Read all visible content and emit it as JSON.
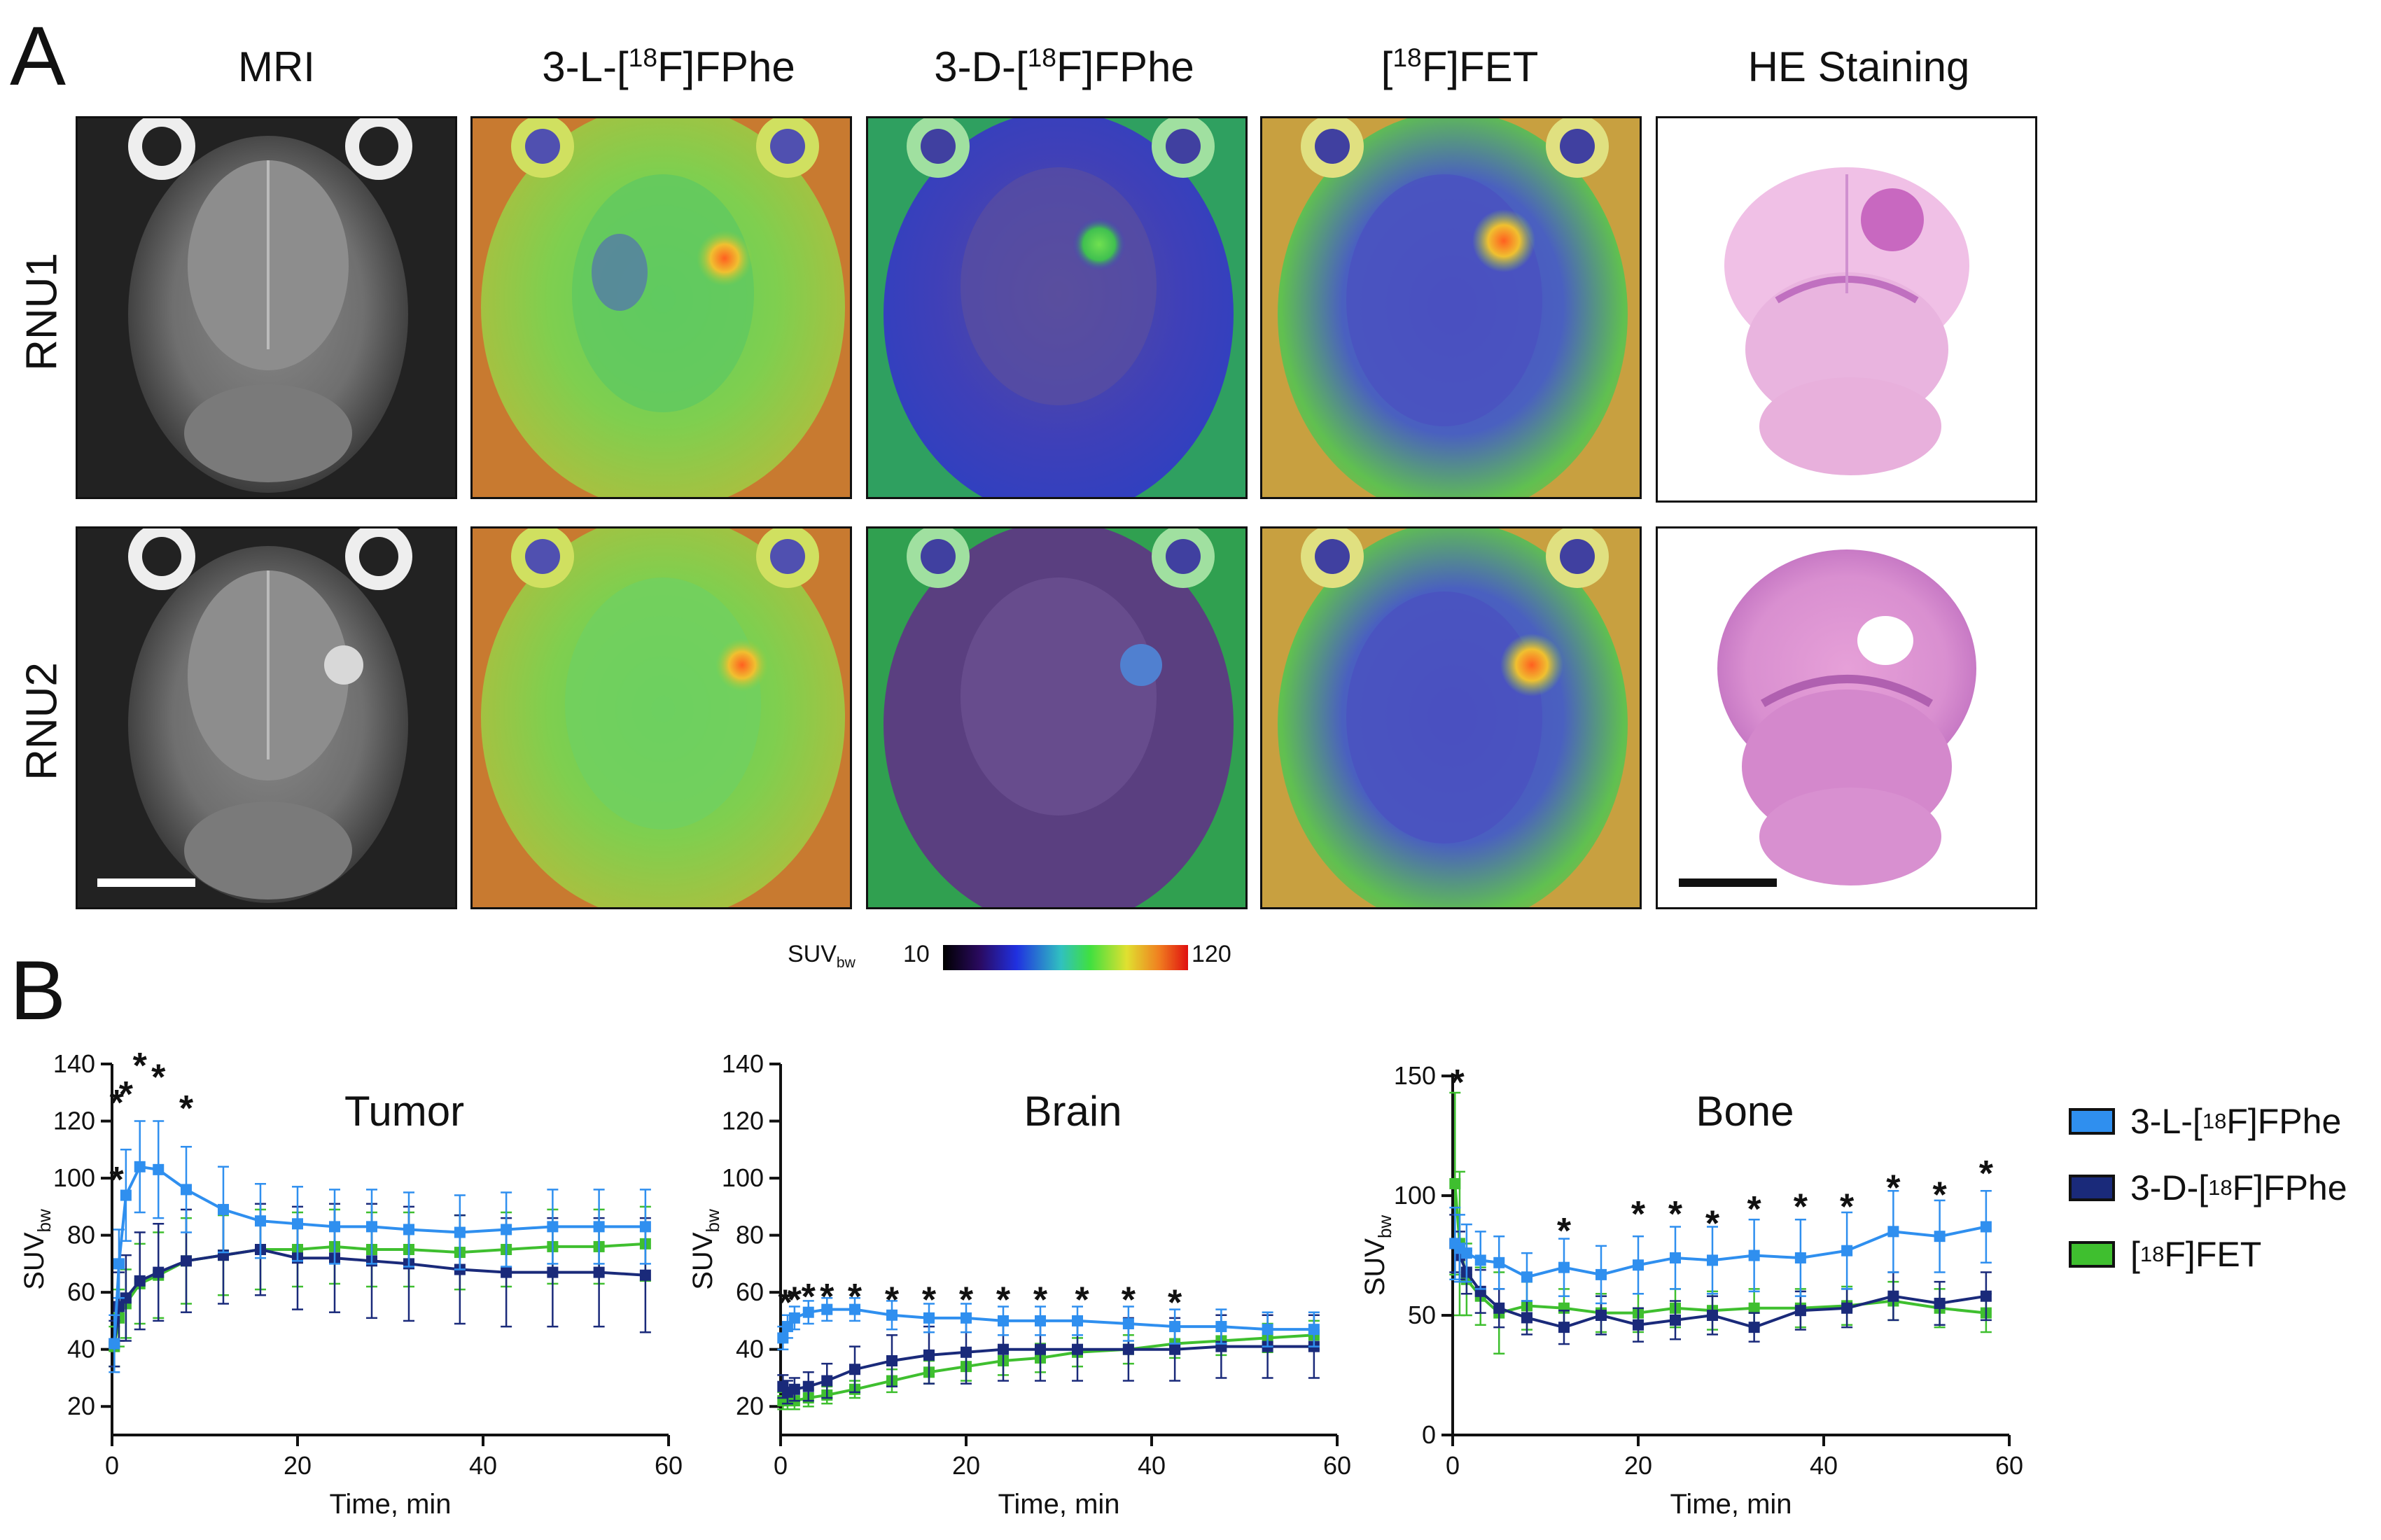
{
  "panelA": {
    "letter": "A",
    "columns": [
      {
        "title": "MRI"
      },
      {
        "pre": "3-",
        "sc": "L",
        "mid": "-[",
        "sup": "18",
        "post": "F]FPhe"
      },
      {
        "pre": "3-",
        "sc": "D",
        "mid": "-[",
        "sup": "18",
        "post": "F]FPhe"
      },
      {
        "pre": "",
        "sc": "",
        "mid": "[",
        "sup": "18",
        "post": "F]FET"
      },
      {
        "title": "HE Staining"
      }
    ],
    "rows": [
      "RNU1",
      "RNU2"
    ],
    "colorbar": {
      "label": "SUV",
      "label_sub": "bw",
      "min": "10",
      "max": "120"
    }
  },
  "panelB": {
    "letter": "B",
    "legend": [
      {
        "pre": "3-",
        "sc": "L",
        "mid": "-[",
        "sup": "18",
        "post": "F]FPhe",
        "color": "#2f8fef"
      },
      {
        "pre": "3-",
        "sc": "D",
        "mid": "-[",
        "sup": "18",
        "post": "F]FPhe",
        "color": "#1a2a7a"
      },
      {
        "pre": "",
        "sc": "",
        "mid": "[",
        "sup": "18",
        "post": "F]FET",
        "color": "#3fbf2f"
      }
    ]
  },
  "chart_data": [
    {
      "type": "line",
      "title": "Tumor",
      "xlabel": "Time, min",
      "ylabel": "SUV",
      "ylabel_sub": "bw",
      "xlim": [
        0,
        60
      ],
      "ylim": [
        10,
        140
      ],
      "xticks": [
        0,
        20,
        40,
        60
      ],
      "yticks": [
        20,
        40,
        60,
        80,
        100,
        120,
        140
      ],
      "x": [
        0.25,
        0.75,
        1.5,
        3,
        5,
        8,
        12,
        16,
        20,
        24,
        28,
        32,
        37.5,
        42.5,
        47.5,
        52.5,
        57.5
      ],
      "series": [
        {
          "name": "3-L-[18F]FPhe",
          "color": "#2f8fef",
          "values": [
            42,
            70,
            94,
            104,
            103,
            96,
            89,
            85,
            84,
            83,
            83,
            82,
            81,
            82,
            83,
            83,
            83
          ],
          "err": [
            10,
            12,
            16,
            16,
            17,
            15,
            15,
            13,
            13,
            13,
            13,
            13,
            13,
            13,
            13,
            13,
            13
          ]
        },
        {
          "name": "3-D-[18F]FPhe",
          "color": "#1a2a7a",
          "values": [
            42,
            55,
            58,
            64,
            67,
            71,
            73,
            75,
            72,
            72,
            71,
            70,
            68,
            67,
            67,
            67,
            66
          ],
          "err": [
            8,
            12,
            15,
            17,
            17,
            18,
            17,
            16,
            18,
            19,
            20,
            20,
            19,
            19,
            19,
            19,
            20
          ]
        },
        {
          "name": "[18F]FET",
          "color": "#3fbf2f",
          "values": [
            41,
            51,
            56,
            63,
            66,
            71,
            73,
            75,
            75,
            76,
            75,
            75,
            74,
            75,
            76,
            76,
            77
          ],
          "err": [
            7,
            10,
            12,
            14,
            15,
            15,
            14,
            14,
            13,
            13,
            13,
            13,
            13,
            13,
            13,
            13,
            13
          ]
        }
      ],
      "significance": [
        {
          "x": 0.5,
          "y": 127,
          "label": "*"
        },
        {
          "x": 1.5,
          "y": 130,
          "label": "*"
        },
        {
          "x": 3,
          "y": 140,
          "label": "*"
        },
        {
          "x": 5,
          "y": 136,
          "label": "*"
        },
        {
          "x": 8,
          "y": 125,
          "label": "*"
        },
        {
          "x": 0.5,
          "y": 100,
          "label": "*"
        }
      ]
    },
    {
      "type": "line",
      "title": "Brain",
      "xlabel": "Time, min",
      "ylabel": "SUV",
      "ylabel_sub": "bw",
      "xlim": [
        0,
        60
      ],
      "ylim": [
        10,
        140
      ],
      "xticks": [
        0,
        20,
        40,
        60
      ],
      "yticks": [
        20,
        40,
        60,
        80,
        100,
        120,
        140
      ],
      "x": [
        0.25,
        0.75,
        1.5,
        3,
        5,
        8,
        12,
        16,
        20,
        24,
        28,
        32,
        37.5,
        42.5,
        47.5,
        52.5,
        57.5
      ],
      "series": [
        {
          "name": "3-L-[18F]FPhe",
          "color": "#2f8fef",
          "values": [
            44,
            48,
            51,
            53,
            54,
            54,
            52,
            51,
            51,
            50,
            50,
            50,
            49,
            48,
            48,
            47,
            47
          ],
          "err": [
            4,
            4,
            4,
            4,
            4,
            4,
            5,
            5,
            5,
            5,
            5,
            5,
            6,
            6,
            6,
            6,
            6
          ]
        },
        {
          "name": "3-D-[18F]FPhe",
          "color": "#1a2a7a",
          "values": [
            27,
            25,
            26,
            27,
            29,
            33,
            36,
            38,
            39,
            40,
            40,
            40,
            40,
            40,
            41,
            41,
            41
          ],
          "err": [
            4,
            4,
            4,
            5,
            6,
            8,
            9,
            10,
            11,
            11,
            11,
            11,
            11,
            11,
            11,
            11,
            11
          ]
        },
        {
          "name": "[18F]FET",
          "color": "#3fbf2f",
          "values": [
            22,
            22,
            22,
            23,
            24,
            26,
            29,
            32,
            34,
            36,
            37,
            39,
            40,
            42,
            43,
            44,
            45
          ],
          "err": [
            3,
            3,
            3,
            3,
            3,
            3,
            4,
            4,
            5,
            5,
            5,
            5,
            5,
            5,
            5,
            5,
            5
          ]
        }
      ],
      "significance": [
        {
          "x": 0.5,
          "y": 57,
          "label": "*"
        },
        {
          "x": 1.5,
          "y": 58,
          "label": "*"
        },
        {
          "x": 3,
          "y": 59,
          "label": "*"
        },
        {
          "x": 5,
          "y": 59,
          "label": "*"
        },
        {
          "x": 8,
          "y": 59,
          "label": "*"
        },
        {
          "x": 12,
          "y": 58,
          "label": "*"
        },
        {
          "x": 16,
          "y": 58,
          "label": "*"
        },
        {
          "x": 20,
          "y": 58,
          "label": "*"
        },
        {
          "x": 24,
          "y": 58,
          "label": "*"
        },
        {
          "x": 28,
          "y": 58,
          "label": "*"
        },
        {
          "x": 32.5,
          "y": 58,
          "label": "*"
        },
        {
          "x": 37.5,
          "y": 58,
          "label": "*"
        },
        {
          "x": 42.5,
          "y": 57,
          "label": "*"
        }
      ]
    },
    {
      "type": "line",
      "title": "Bone",
      "xlabel": "Time, min",
      "ylabel": "SUV",
      "ylabel_sub": "bw",
      "xlim": [
        0,
        60
      ],
      "ylim": [
        0,
        155
      ],
      "xticks": [
        0,
        20,
        40,
        60
      ],
      "yticks": [
        0,
        50,
        100,
        150
      ],
      "x": [
        0.25,
        0.75,
        1.5,
        3,
        5,
        8,
        12,
        16,
        20,
        24,
        28,
        32.5,
        37.5,
        42.5,
        47.5,
        52.5,
        57.5
      ],
      "series": [
        {
          "name": "3-L-[18F]FPhe",
          "color": "#2f8fef",
          "values": [
            80,
            78,
            76,
            73,
            72,
            66,
            70,
            67,
            71,
            74,
            73,
            75,
            74,
            77,
            85,
            83,
            87
          ],
          "err": [
            15,
            14,
            12,
            12,
            11,
            10,
            12,
            12,
            12,
            13,
            14,
            15,
            16,
            16,
            17,
            15,
            15
          ]
        },
        {
          "name": "3-D-[18F]FPhe",
          "color": "#1a2a7a",
          "values": [
            80,
            75,
            68,
            60,
            53,
            49,
            45,
            50,
            46,
            48,
            50,
            45,
            52,
            53,
            58,
            55,
            58
          ],
          "err": [
            12,
            10,
            9,
            9,
            8,
            7,
            7,
            8,
            7,
            8,
            8,
            6,
            8,
            8,
            10,
            9,
            10
          ]
        },
        {
          "name": "[18F]FET",
          "color": "#3fbf2f",
          "values": [
            105,
            80,
            65,
            58,
            51,
            54,
            53,
            51,
            51,
            53,
            52,
            53,
            53,
            54,
            56,
            53,
            51
          ],
          "err": [
            38,
            30,
            15,
            12,
            17,
            10,
            8,
            8,
            8,
            8,
            8,
            8,
            8,
            8,
            8,
            8,
            8
          ]
        }
      ],
      "significance": [
        {
          "x": 0.5,
          "y": 148,
          "label": "*"
        },
        {
          "x": 12,
          "y": 86,
          "label": "*"
        },
        {
          "x": 20,
          "y": 93,
          "label": "*"
        },
        {
          "x": 24,
          "y": 93,
          "label": "*"
        },
        {
          "x": 28,
          "y": 89,
          "label": "*"
        },
        {
          "x": 32.5,
          "y": 95,
          "label": "*"
        },
        {
          "x": 37.5,
          "y": 96,
          "label": "*"
        },
        {
          "x": 42.5,
          "y": 96,
          "label": "*"
        },
        {
          "x": 47.5,
          "y": 104,
          "label": "*"
        },
        {
          "x": 52.5,
          "y": 101,
          "label": "*"
        },
        {
          "x": 57.5,
          "y": 110,
          "label": "*"
        }
      ]
    }
  ]
}
